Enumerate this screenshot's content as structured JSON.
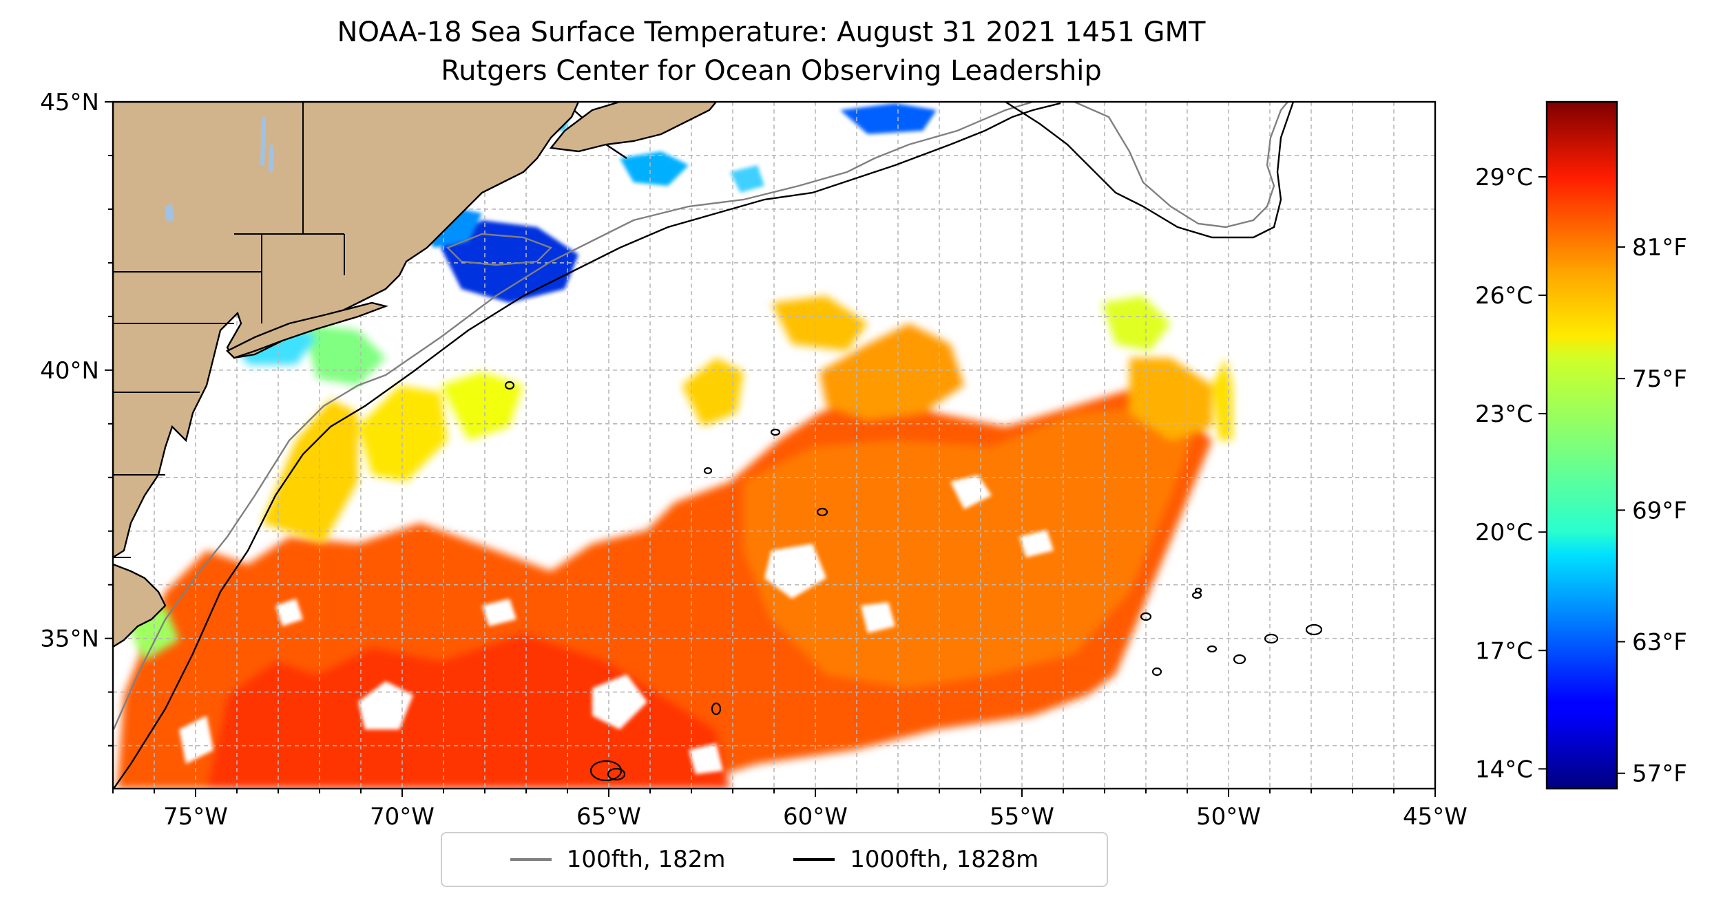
{
  "title": "NOAA-18 Sea Surface Temperature: August 31 2021 1451 GMT",
  "subtitle": "Rutgers Center for Ocean Observing Leadership",
  "axes": {
    "lon_min": -77,
    "lon_max": -45,
    "lat_min": 32.2,
    "lat_max": 45,
    "x_ticks": [
      {
        "value": -75,
        "label": "75°W"
      },
      {
        "value": -70,
        "label": "70°W"
      },
      {
        "value": -65,
        "label": "65°W"
      },
      {
        "value": -60,
        "label": "60°W"
      },
      {
        "value": -55,
        "label": "55°W"
      },
      {
        "value": -50,
        "label": "50°W"
      },
      {
        "value": -45,
        "label": "45°W"
      }
    ],
    "y_ticks": [
      {
        "value": 45,
        "label": "45°N"
      },
      {
        "value": 40,
        "label": "40°N"
      },
      {
        "value": 35,
        "label": "35°N"
      }
    ],
    "gridlines": true
  },
  "colorbar": {
    "colormap": "jet",
    "min_c": 13.5,
    "max_c": 30.9,
    "celsius_ticks": [
      {
        "value": 14,
        "label": "14°C"
      },
      {
        "value": 17,
        "label": "17°C"
      },
      {
        "value": 20,
        "label": "20°C"
      },
      {
        "value": 23,
        "label": "23°C"
      },
      {
        "value": 26,
        "label": "26°C"
      },
      {
        "value": 29,
        "label": "29°C"
      }
    ],
    "fahrenheit_ticks": [
      {
        "value": 57,
        "label": "57°F"
      },
      {
        "value": 63,
        "label": "63°F"
      },
      {
        "value": 69,
        "label": "69°F"
      },
      {
        "value": 75,
        "label": "75°F"
      },
      {
        "value": 81,
        "label": "81°F"
      }
    ]
  },
  "legend": [
    {
      "label": "100fth, 182m",
      "color": "#808080"
    },
    {
      "label": "1000fth, 1828m",
      "color": "#000000"
    }
  ],
  "colors": {
    "land": "#d2b48c",
    "lakes": "#9fc3e6"
  }
}
